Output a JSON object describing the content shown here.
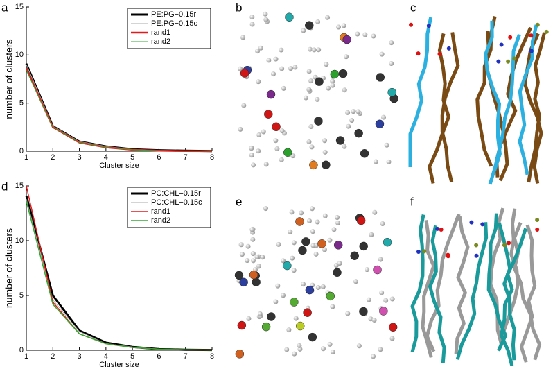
{
  "chart_data": [
    {
      "type": "line",
      "panel": "a",
      "xlabel": "Cluster size",
      "ylabel": "number of clusters",
      "x": [
        1,
        2,
        3,
        4,
        5,
        6,
        7,
        8
      ],
      "xlim": [
        1,
        8
      ],
      "xticks": [
        1,
        2,
        3,
        4,
        5,
        6,
        7,
        8
      ],
      "ylim": [
        0,
        15
      ],
      "yticks": [
        0,
        5,
        10,
        15
      ],
      "legend": "upper right",
      "series": [
        {
          "name": "PE:PG−0.15r",
          "color": "#000000",
          "line_width": 3,
          "values": [
            9.1,
            2.6,
            1.0,
            0.5,
            0.2,
            0.1,
            0.05,
            0.02
          ]
        },
        {
          "name": "PE:PG−0.15c",
          "color": "#aaaaaa",
          "line_width": 1,
          "values": [
            9.0,
            2.6,
            1.0,
            0.5,
            0.2,
            0.1,
            0.05,
            0.02
          ]
        },
        {
          "name": "rand1",
          "color": "#e31a1c",
          "line_width": 2.5,
          "values": [
            8.6,
            2.5,
            0.9,
            0.4,
            0.15,
            0.05,
            0.02,
            0.01
          ]
        },
        {
          "name": "rand2",
          "color": "#33aa33",
          "line_width": 1,
          "values": [
            8.4,
            2.5,
            0.9,
            0.4,
            0.15,
            0.05,
            0.02,
            0.01
          ]
        }
      ]
    },
    {
      "type": "line",
      "panel": "d",
      "xlabel": "Cluster size",
      "ylabel": "number of clusters",
      "x": [
        1,
        2,
        3,
        4,
        5,
        6,
        7,
        8
      ],
      "xlim": [
        1,
        8
      ],
      "xticks": [
        1,
        2,
        3,
        4,
        5,
        6,
        7,
        8
      ],
      "ylim": [
        0,
        15
      ],
      "yticks": [
        0,
        5,
        10,
        15
      ],
      "legend": "upper right",
      "series": [
        {
          "name": "PC:CHL−0.15r",
          "color": "#000000",
          "line_width": 3,
          "values": [
            14.1,
            5.0,
            1.8,
            0.7,
            0.3,
            0.1,
            0.05,
            0.02
          ]
        },
        {
          "name": "PC:CHL−0.15c",
          "color": "#aaaaaa",
          "line_width": 1,
          "values": [
            13.8,
            4.6,
            1.7,
            0.6,
            0.3,
            0.1,
            0.05,
            0.02
          ]
        },
        {
          "name": "rand1",
          "color": "#e31a1c",
          "line_width": 1.5,
          "values": [
            15,
            4.4,
            1.5,
            0.6,
            0.25,
            0.1,
            0.05,
            0.02
          ]
        },
        {
          "name": "rand2",
          "color": "#33aa33",
          "line_width": 1.5,
          "values": [
            13.6,
            4.2,
            1.5,
            0.6,
            0.25,
            0.1,
            0.05,
            0.02
          ]
        }
      ]
    }
  ],
  "panel_labels": [
    "b",
    "c",
    "e",
    "f"
  ]
}
